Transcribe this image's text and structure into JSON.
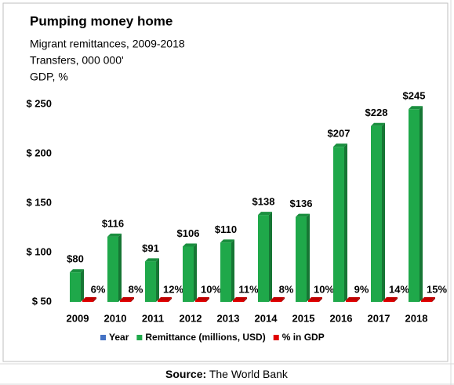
{
  "chart_data": {
    "type": "bar",
    "title": "Pumping money home",
    "subtitle": [
      "Migrant remittances, 2009-2018",
      "Transfers, 000 000'",
      "GDP, %"
    ],
    "categories": [
      "2009",
      "2010",
      "2011",
      "2012",
      "2013",
      "2014",
      "2015",
      "2016",
      "2017",
      "2018"
    ],
    "series": [
      {
        "name": "Remittance (millions, USD)",
        "color": "#1fa84a",
        "values": [
          80,
          116,
          91,
          106,
          110,
          138,
          136,
          207,
          228,
          245
        ],
        "value_labels": [
          "$80",
          "$116",
          "$91",
          "$106",
          "$110",
          "$138",
          "$136",
          "$207",
          "$228",
          "$245"
        ]
      },
      {
        "name": "% in GDP",
        "color": "#e00000",
        "values": [
          6,
          8,
          12,
          10,
          11,
          8,
          10,
          9,
          14,
          15
        ],
        "value_labels": [
          "6%",
          "8%",
          "12%",
          "10%",
          "11%",
          "8%",
          "10%",
          "9%",
          "14%",
          "15%"
        ]
      }
    ],
    "legend": [
      {
        "name": "Year",
        "color": "#4472c4"
      },
      {
        "name": "Remittance (millions, USD)",
        "color": "#1fa84a"
      },
      {
        "name": "% in GDP",
        "color": "#e00000"
      }
    ],
    "ylim": [
      50,
      250
    ],
    "yticks": [
      {
        "value": 50,
        "label": "$ 50"
      },
      {
        "value": 100,
        "label": "$ 100"
      },
      {
        "value": 150,
        "label": "$ 150"
      },
      {
        "value": 200,
        "label": "$ 200"
      },
      {
        "value": 250,
        "label": "$ 250"
      }
    ],
    "source": {
      "label": "Source:",
      "text": "The World Bank"
    }
  }
}
